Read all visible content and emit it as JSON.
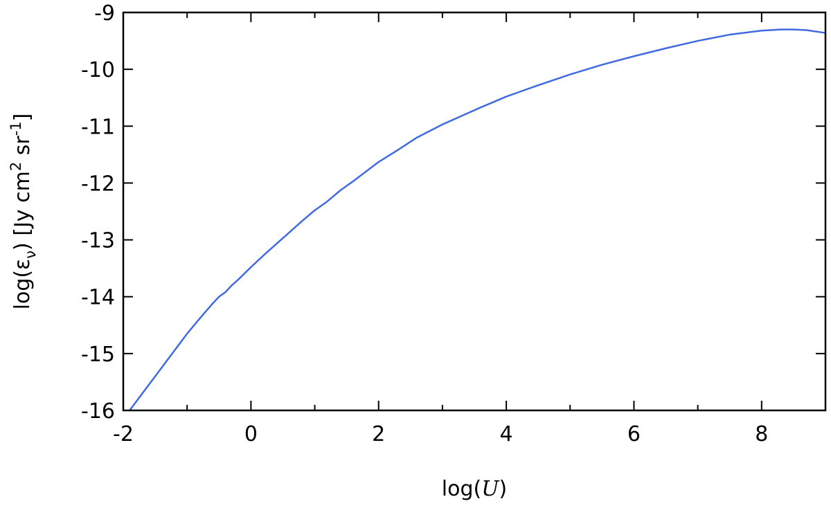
{
  "chart_data": {
    "type": "line",
    "xlabel_prefix": "log(",
    "xlabel_var": "U",
    "xlabel_suffix": ")",
    "ylabel_main": "log(ε",
    "ylabel_sub": "ν",
    "ylabel_units": ") [Jy cm",
    "ylabel_sup1": "2",
    "ylabel_mid": " sr",
    "ylabel_sup2": "-1",
    "ylabel_end": "]",
    "xlim": [
      -2,
      9
    ],
    "ylim": [
      -16,
      -9
    ],
    "xticks": [
      -2,
      0,
      2,
      4,
      6,
      8
    ],
    "xticks_minor": [
      -1,
      1,
      3,
      5,
      7,
      9
    ],
    "yticks": [
      -16,
      -15,
      -14,
      -13,
      -12,
      -11,
      -10,
      -9
    ],
    "grid": false,
    "colors": {
      "line": "#4169e1",
      "axis": "#000000"
    },
    "series": [
      {
        "x": [
          -1.9,
          -1.8,
          -1.6,
          -1.5,
          -1.2,
          -1.0,
          -0.8,
          -0.6,
          -0.5,
          -0.4,
          -0.3,
          -0.2,
          0.0,
          0.2,
          0.4,
          0.6,
          0.8,
          1.0,
          1.2,
          1.4,
          1.6,
          1.8,
          2.0,
          2.3,
          2.6,
          3.0,
          3.3,
          3.6,
          4.0,
          4.2,
          4.5,
          5.0,
          5.5,
          6.0,
          6.5,
          7.0,
          7.5,
          8.0,
          8.3,
          8.5,
          8.7,
          9.0
        ],
        "y": [
          -16.0,
          -15.85,
          -15.55,
          -15.4,
          -14.95,
          -14.65,
          -14.38,
          -14.12,
          -14.0,
          -13.92,
          -13.8,
          -13.7,
          -13.48,
          -13.27,
          -13.07,
          -12.87,
          -12.67,
          -12.48,
          -12.32,
          -12.13,
          -11.97,
          -11.8,
          -11.63,
          -11.42,
          -11.2,
          -10.97,
          -10.82,
          -10.67,
          -10.48,
          -10.4,
          -10.28,
          -10.09,
          -9.92,
          -9.77,
          -9.63,
          -9.5,
          -9.39,
          -9.32,
          -9.3,
          -9.3,
          -9.31,
          -9.36
        ]
      }
    ]
  }
}
